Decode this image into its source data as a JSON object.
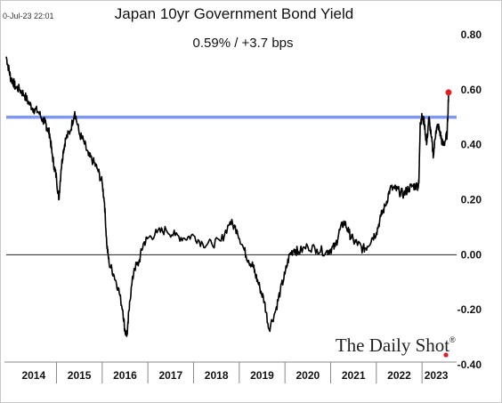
{
  "chart_data": {
    "type": "line",
    "title": "Japan 10yr Government Bond Yield",
    "subtitle": "0.59%  /  +3.7 bps",
    "timestamp": "0-Jul-23 22:01",
    "source_brand": "The Daily Shot",
    "xlabel": "",
    "ylabel": "",
    "ylim": [
      -0.4,
      0.8
    ],
    "yticks": [
      "0.80",
      "0.60",
      "0.40",
      "0.20",
      "0.00",
      "-0.20",
      "-0.40"
    ],
    "ytick_values": [
      0.8,
      0.6,
      0.4,
      0.2,
      0.0,
      -0.2,
      -0.4
    ],
    "xticks": [
      "2014",
      "2015",
      "2016",
      "2017",
      "2018",
      "2019",
      "2020",
      "2021",
      "2022",
      "2023"
    ],
    "xlim": [
      2013.9,
      2023.62
    ],
    "reference_lines": [
      {
        "y": 0.5,
        "color": "#7f98f0"
      },
      {
        "y": 0.0,
        "color": "#222222"
      }
    ],
    "last_point_color": "#e02020",
    "line_color": "#000000",
    "series": [
      {
        "x": [
          2013.9,
          2013.95,
          2014.0,
          2014.05,
          2014.1,
          2014.2,
          2014.3,
          2014.4,
          2014.5,
          2014.6,
          2014.7,
          2014.75,
          2014.8,
          2014.85,
          2014.9,
          2014.95,
          2015.0,
          2015.05,
          2015.1,
          2015.15,
          2015.2,
          2015.3,
          2015.4,
          2015.5,
          2015.6,
          2015.7,
          2015.8,
          2015.9,
          2016.0,
          2016.05,
          2016.1,
          2016.15,
          2016.25,
          2016.35,
          2016.45,
          2016.5,
          2016.55,
          2016.6,
          2016.7,
          2016.8,
          2016.9,
          2017.0,
          2017.2,
          2017.4,
          2017.6,
          2017.8,
          2018.0,
          2018.2,
          2018.4,
          2018.6,
          2018.8,
          2018.95,
          2019.1,
          2019.2,
          2019.3,
          2019.35,
          2019.45,
          2019.55,
          2019.65,
          2019.8,
          2019.9,
          2020.0,
          2020.1,
          2020.2,
          2020.3,
          2020.5,
          2020.7,
          2020.9,
          2021.0,
          2021.1,
          2021.2,
          2021.3,
          2021.4,
          2021.5,
          2021.6,
          2021.7,
          2021.8,
          2021.9,
          2022.0,
          2022.1,
          2022.2,
          2022.3,
          2022.4,
          2022.5,
          2022.6,
          2022.7,
          2022.8,
          2022.9,
          2022.93,
          2022.96,
          2023.0,
          2023.05,
          2023.1,
          2023.15,
          2023.2,
          2023.25,
          2023.3,
          2023.35,
          2023.4,
          2023.45,
          2023.5,
          2023.55,
          2023.58
        ],
        "values": [
          0.72,
          0.68,
          0.64,
          0.63,
          0.61,
          0.6,
          0.58,
          0.55,
          0.53,
          0.52,
          0.49,
          0.48,
          0.46,
          0.44,
          0.37,
          0.32,
          0.28,
          0.2,
          0.31,
          0.38,
          0.42,
          0.45,
          0.52,
          0.44,
          0.41,
          0.36,
          0.34,
          0.31,
          0.26,
          0.19,
          0.04,
          -0.03,
          -0.07,
          -0.12,
          -0.2,
          -0.28,
          -0.29,
          -0.17,
          -0.05,
          -0.03,
          0.04,
          0.06,
          0.08,
          0.09,
          0.07,
          0.06,
          0.07,
          0.04,
          0.04,
          0.05,
          0.12,
          0.09,
          0.02,
          -0.02,
          -0.04,
          -0.07,
          -0.12,
          -0.17,
          -0.27,
          -0.2,
          -0.13,
          -0.07,
          0.0,
          0.02,
          0.01,
          0.03,
          0.02,
          0.01,
          0.02,
          0.03,
          0.09,
          0.12,
          0.08,
          0.05,
          0.04,
          0.02,
          0.03,
          0.06,
          0.08,
          0.14,
          0.18,
          0.24,
          0.24,
          0.23,
          0.22,
          0.24,
          0.25,
          0.25,
          0.26,
          0.48,
          0.5,
          0.48,
          0.4,
          0.5,
          0.43,
          0.36,
          0.45,
          0.47,
          0.44,
          0.4,
          0.41,
          0.44,
          0.59
        ]
      }
    ]
  }
}
